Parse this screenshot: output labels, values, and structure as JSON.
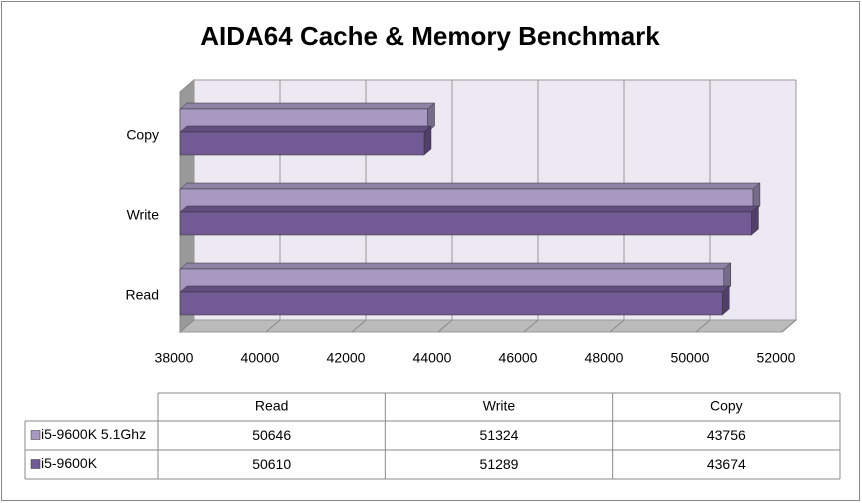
{
  "chart_data": {
    "type": "bar3d_horizontal",
    "title": "AIDA64 Cache & Memory Benchmark",
    "categories": [
      "Read",
      "Write",
      "Copy"
    ],
    "series": [
      {
        "name": "i5-9600K 5.1Ghz",
        "color": "#a899c2",
        "values": [
          50646,
          51324,
          43756
        ]
      },
      {
        "name": "i5-9600K",
        "color": "#725a94",
        "values": [
          50610,
          51289,
          43674
        ]
      }
    ],
    "xlim": [
      38000,
      52000
    ],
    "xticks": [
      38000,
      40000,
      42000,
      44000,
      46000,
      48000,
      50000,
      52000
    ],
    "grid": true,
    "data_table": true
  }
}
